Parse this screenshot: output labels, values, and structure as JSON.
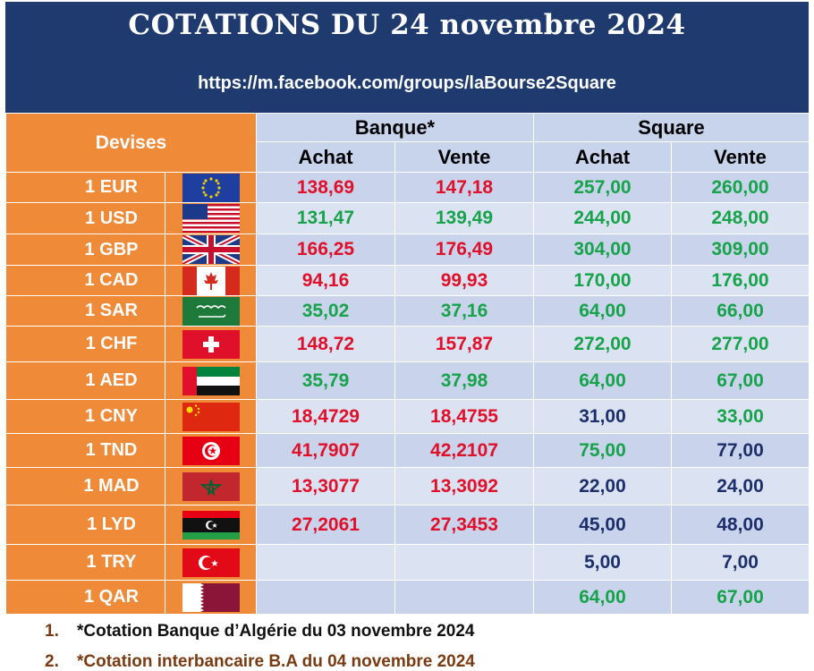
{
  "header": {
    "title": "COTATIONS DU 24 novembre 2024",
    "url": "https://m.facebook.com/groups/laBourse2Square"
  },
  "table": {
    "devises_label": "Devises",
    "group_banque": "Banque*",
    "group_square": "Square",
    "achat_label": "Achat",
    "vente_label": "Vente",
    "rows": [
      {
        "currency": "1 EUR",
        "flag": "eu-flag",
        "banque_achat": "138,69",
        "banque_vente": "147,18",
        "square_achat": "257,00",
        "square_vente": "260,00"
      },
      {
        "currency": "1 USD",
        "flag": "us-flag",
        "banque_achat": "131,47",
        "banque_vente": "139,49",
        "square_achat": "244,00",
        "square_vente": "248,00"
      },
      {
        "currency": "1 GBP",
        "flag": "uk-flag",
        "banque_achat": "166,25",
        "banque_vente": "176,49",
        "square_achat": "304,00",
        "square_vente": "309,00"
      },
      {
        "currency": "1 CAD",
        "flag": "canada-flag",
        "banque_achat": "94,16",
        "banque_vente": "99,93",
        "square_achat": "170,00",
        "square_vente": "176,00"
      },
      {
        "currency": "1 SAR",
        "flag": "saudi-flag",
        "banque_achat": "35,02",
        "banque_vente": "37,16",
        "square_achat": "64,00",
        "square_vente": "66,00"
      },
      {
        "currency": "1 CHF",
        "flag": "swiss-flag",
        "banque_achat": "148,72",
        "banque_vente": "157,87",
        "square_achat": "272,00",
        "square_vente": "277,00"
      },
      {
        "currency": "1 AED",
        "flag": "uae-flag",
        "banque_achat": "35,79",
        "banque_vente": "37,98",
        "square_achat": "64,00",
        "square_vente": "67,00"
      },
      {
        "currency": "1 CNY",
        "flag": "china-flag",
        "banque_achat": "18,4729",
        "banque_vente": "18,4755",
        "square_achat": "31,00",
        "square_vente": "33,00"
      },
      {
        "currency": "1 TND",
        "flag": "tunisia-flag",
        "banque_achat": "41,7907",
        "banque_vente": "42,2107",
        "square_achat": "75,00",
        "square_vente": "77,00"
      },
      {
        "currency": "1 MAD",
        "flag": "morocco-flag",
        "banque_achat": "13,3077",
        "banque_vente": "13,3092",
        "square_achat": "22,00",
        "square_vente": "24,00"
      },
      {
        "currency": "1 LYD",
        "flag": "libya-flag",
        "banque_achat": "27,2061",
        "banque_vente": "27,3453",
        "square_achat": "45,00",
        "square_vente": "48,00"
      },
      {
        "currency": "1 TRY",
        "flag": "turkey-flag",
        "banque_achat": "",
        "banque_vente": "",
        "square_achat": "5,00",
        "square_vente": "7,00"
      },
      {
        "currency": "1 QAR",
        "flag": "qatar-flag",
        "banque_achat": "",
        "banque_vente": "",
        "square_achat": "64,00",
        "square_vente": "67,00"
      }
    ]
  },
  "notes": [
    {
      "number": "1.",
      "text": "*Cotation Banque d’Algérie du 03 novembre 2024"
    },
    {
      "number": "2.",
      "text": "*Cotation interbancaire B.A du 04 novembre 2024"
    }
  ],
  "colors": {
    "header_bg": "#1f3a6e",
    "orange": "#ef8a38",
    "red_value": "#e0102a",
    "green_value": "#16a34a",
    "navy_value": "#1c2f6b"
  }
}
